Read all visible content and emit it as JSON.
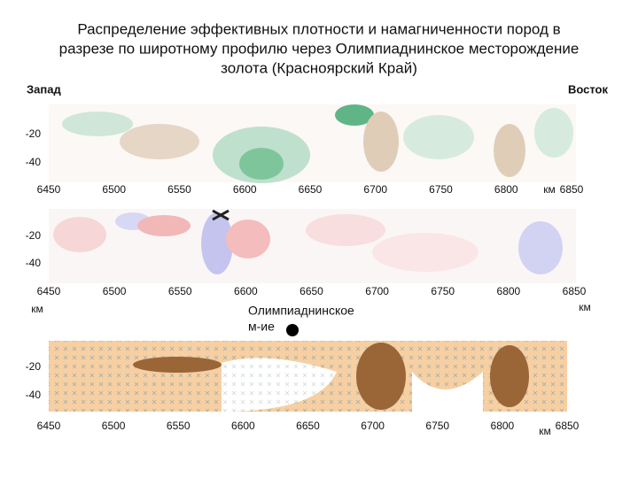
{
  "title": [
    "Распределение эффективных плотности и намагниченности пород в",
    "разрезе по широтному профилю через Олимпиаднинское месторождение",
    "золота (Красноярский Край)"
  ],
  "west": "Запад",
  "east": "Восток",
  "deposit": [
    "Олимпиаднинское",
    "м-ие"
  ],
  "panels": [
    {
      "xticks": [
        6450,
        6500,
        6550,
        6600,
        6650,
        6700,
        6750,
        6800,
        6850
      ],
      "yticks": [
        -20,
        -40
      ],
      "unit": "км"
    },
    {
      "xticks": [
        6450,
        6500,
        6550,
        6600,
        6650,
        6700,
        6750,
        6800,
        6850
      ],
      "yticks": [
        -20,
        -40
      ],
      "unit": "км"
    },
    {
      "xticks": [
        6450,
        6500,
        6550,
        6600,
        6650,
        6700,
        6750,
        6800,
        6850
      ],
      "yticks": [
        -20,
        -40
      ],
      "unit": "км"
    }
  ]
}
